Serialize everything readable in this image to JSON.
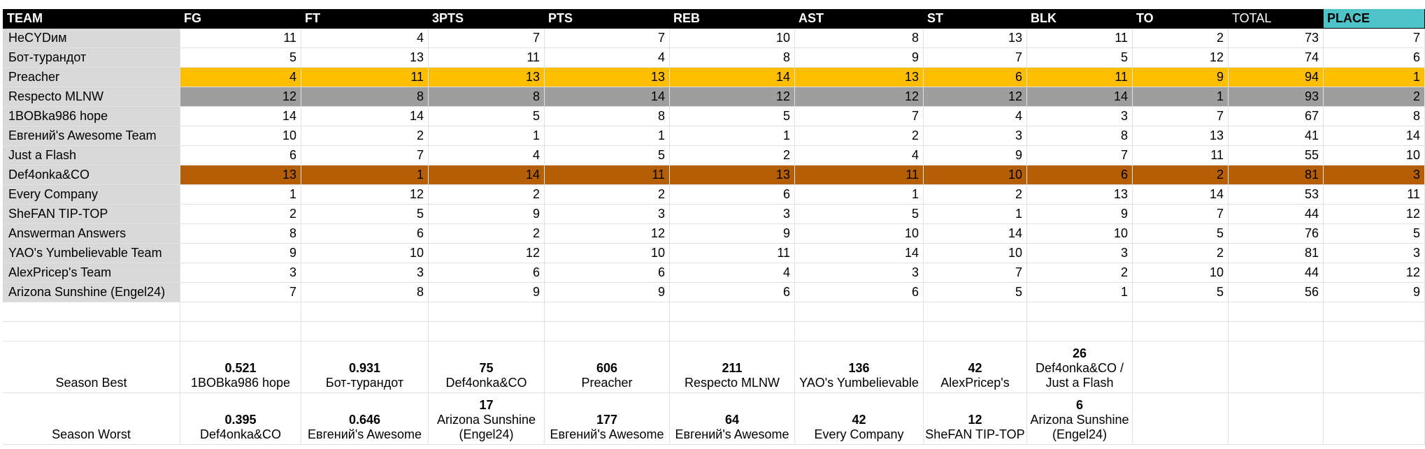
{
  "headers": [
    "TEAM",
    "FG",
    "FT",
    "3PTS",
    "PTS",
    "REB",
    "AST",
    "ST",
    "BLK",
    "TO",
    "TOTAL",
    "PLACE"
  ],
  "rows": [
    {
      "team": "НеСYDим",
      "values": [
        11,
        4,
        7,
        7,
        10,
        8,
        13,
        11,
        2,
        73,
        7
      ],
      "highlight": ""
    },
    {
      "team": "Бот-турандот",
      "values": [
        5,
        13,
        11,
        4,
        8,
        9,
        7,
        5,
        12,
        74,
        6
      ],
      "highlight": ""
    },
    {
      "team": "Preacher",
      "values": [
        4,
        11,
        13,
        13,
        14,
        13,
        6,
        11,
        9,
        94,
        1
      ],
      "highlight": "gold"
    },
    {
      "team": "Respecto MLNW",
      "values": [
        12,
        8,
        8,
        14,
        12,
        12,
        12,
        14,
        1,
        93,
        2
      ],
      "highlight": "silver"
    },
    {
      "team": "1BOBka986 hope",
      "values": [
        14,
        14,
        5,
        8,
        5,
        7,
        4,
        3,
        7,
        67,
        8
      ],
      "highlight": ""
    },
    {
      "team": "Евгений's Awesome Team",
      "values": [
        10,
        2,
        1,
        1,
        1,
        2,
        3,
        8,
        13,
        41,
        14
      ],
      "highlight": ""
    },
    {
      "team": "Just a Flash",
      "values": [
        6,
        7,
        4,
        5,
        2,
        4,
        9,
        7,
        11,
        55,
        10
      ],
      "highlight": ""
    },
    {
      "team": "Def4onka&CO",
      "values": [
        13,
        1,
        14,
        11,
        13,
        11,
        10,
        6,
        2,
        81,
        3
      ],
      "highlight": "bronze"
    },
    {
      "team": "Every Company",
      "values": [
        1,
        12,
        2,
        2,
        6,
        1,
        2,
        13,
        14,
        53,
        11
      ],
      "highlight": ""
    },
    {
      "team": "SheFAN TIP-TOP",
      "values": [
        2,
        5,
        9,
        3,
        3,
        5,
        1,
        9,
        7,
        44,
        12
      ],
      "highlight": ""
    },
    {
      "team": "Answerman Answers",
      "values": [
        8,
        6,
        2,
        12,
        9,
        10,
        14,
        10,
        5,
        76,
        5
      ],
      "highlight": ""
    },
    {
      "team": "YAO's Yumbelievable Team",
      "values": [
        9,
        10,
        12,
        10,
        11,
        14,
        10,
        3,
        2,
        81,
        3
      ],
      "highlight": ""
    },
    {
      "team": "AlexPricep's Team",
      "values": [
        3,
        3,
        6,
        6,
        4,
        3,
        7,
        2,
        10,
        44,
        12
      ],
      "highlight": ""
    },
    {
      "team": "Arizona Sunshine (Engel24)",
      "values": [
        7,
        8,
        9,
        9,
        6,
        6,
        5,
        1,
        5,
        56,
        9
      ],
      "highlight": ""
    }
  ],
  "season_best": {
    "label": "Season Best",
    "cells": [
      {
        "value": "0.521",
        "lines": [
          "1BOBka986 hope"
        ]
      },
      {
        "value": "0.931",
        "lines": [
          "Бот-турандот"
        ]
      },
      {
        "value": "75",
        "lines": [
          "Def4onka&CO"
        ]
      },
      {
        "value": "606",
        "lines": [
          "Preacher"
        ]
      },
      {
        "value": "211",
        "lines": [
          "Respecto MLNW"
        ]
      },
      {
        "value": "136",
        "lines": [
          "YAO's Yumbelievable"
        ]
      },
      {
        "value": "42",
        "lines": [
          "AlexPricep's"
        ]
      },
      {
        "value": "26",
        "lines": [
          "Def4onka&CO /",
          "Just a Flash"
        ]
      }
    ]
  },
  "season_worst": {
    "label": "Season Worst",
    "cells": [
      {
        "value": "0.395",
        "lines": [
          "Def4onka&CO"
        ]
      },
      {
        "value": "0.646",
        "lines": [
          "Евгений's Awesome"
        ]
      },
      {
        "value": "17",
        "lines": [
          "Arizona Sunshine",
          "(Engel24)"
        ]
      },
      {
        "value": "177",
        "lines": [
          "Евгений's Awesome"
        ]
      },
      {
        "value": "64",
        "lines": [
          "Евгений's Awesome"
        ]
      },
      {
        "value": "42",
        "lines": [
          "Every Company"
        ]
      },
      {
        "value": "12",
        "lines": [
          "SheFAN TIP-TOP"
        ]
      },
      {
        "value": "6",
        "lines": [
          "Arizona Sunshine",
          "(Engel24)"
        ]
      }
    ]
  },
  "colors": {
    "header": "#000000",
    "place_header": "#4ec3c8",
    "gold": "#ffbf00",
    "silver": "#9e9e9e",
    "bronze": "#b45f06",
    "team_bg": "#d9d9d9"
  }
}
